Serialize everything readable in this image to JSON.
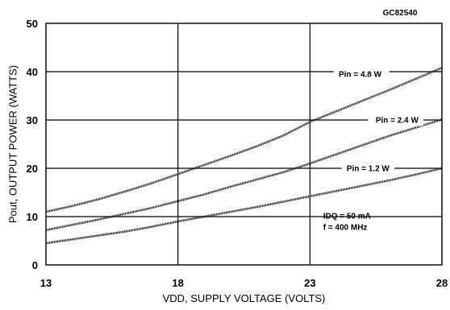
{
  "figure_code": "GC82540",
  "chart_data": {
    "type": "line",
    "title": "",
    "xlabel": "VDD, SUPPLY VOLTAGE (VOLTS)",
    "ylabel": "Pout, OUTPUT POWER (WATTS)",
    "xlim": [
      13,
      28
    ],
    "ylim": [
      0,
      50
    ],
    "xticks": [
      "13",
      "18",
      "23",
      "28"
    ],
    "yticks": [
      "0",
      "10",
      "20",
      "30",
      "40",
      "50"
    ],
    "grid": true,
    "series": [
      {
        "name": "Pin = 4.8 W",
        "x": [
          13,
          14,
          15,
          16,
          17,
          18,
          19,
          20,
          21,
          22,
          23,
          24,
          25,
          26,
          27,
          28
        ],
        "values": [
          11,
          12.2,
          13.6,
          15.2,
          16.9,
          18.8,
          20.7,
          22.6,
          24.6,
          26.8,
          29.6,
          31.8,
          34,
          36.2,
          38.5,
          40.8
        ]
      },
      {
        "name": "Pin = 2.4 W",
        "x": [
          13,
          14,
          15,
          16,
          17,
          18,
          19,
          20,
          21,
          22,
          23,
          24,
          25,
          26,
          27,
          28
        ],
        "values": [
          7.2,
          8.3,
          9.4,
          10.6,
          11.8,
          13.2,
          14.6,
          16.2,
          17.7,
          19.2,
          21,
          22.9,
          24.8,
          26.7,
          28.4,
          30.1
        ]
      },
      {
        "name": "Pin = 1.2 W",
        "x": [
          13,
          14,
          15,
          16,
          17,
          18,
          19,
          20,
          21,
          22,
          23,
          24,
          25,
          26,
          27,
          28
        ],
        "values": [
          4.5,
          5.3,
          6.1,
          6.9,
          7.9,
          9,
          10,
          11,
          12,
          13.1,
          14.2,
          15.3,
          16.4,
          17.5,
          18.7,
          20
        ]
      }
    ],
    "annotations": [
      "IDQ = 50 mA",
      "f = 400 MHz"
    ]
  }
}
